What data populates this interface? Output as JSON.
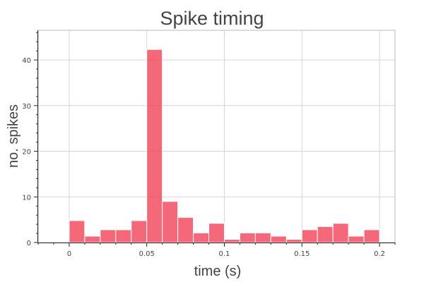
{
  "chart_data": {
    "type": "bar",
    "title": "Spike timing",
    "xlabel": "time (s)",
    "ylabel": "no. spikes",
    "xlim": [
      -0.02,
      0.21
    ],
    "ylim": [
      0,
      46.5
    ],
    "grid": true,
    "legend": "none",
    "bar_color": "#f23d55",
    "x_ticks": [
      {
        "value": 0,
        "label": "0"
      },
      {
        "value": 0.05,
        "label": "0.05"
      },
      {
        "value": 0.1,
        "label": "0.1"
      },
      {
        "value": 0.15,
        "label": "0.15"
      },
      {
        "value": 0.2,
        "label": "0.2"
      }
    ],
    "y_ticks": [
      {
        "value": 0,
        "label": "0"
      },
      {
        "value": 10,
        "label": "10"
      },
      {
        "value": 20,
        "label": "20"
      },
      {
        "value": 30,
        "label": "30"
      },
      {
        "value": 40,
        "label": "40"
      }
    ],
    "bin_width": 0.01,
    "bin_starts": [
      0.0,
      0.01,
      0.02,
      0.03,
      0.04,
      0.05,
      0.06,
      0.07,
      0.08,
      0.09,
      0.1,
      0.11,
      0.12,
      0.13,
      0.14,
      0.15,
      0.16,
      0.17,
      0.18,
      0.19
    ],
    "values": [
      4.8,
      1.4,
      2.8,
      2.8,
      4.8,
      42.3,
      9.0,
      5.5,
      2.1,
      4.2,
      0.7,
      2.1,
      2.1,
      1.4,
      0.7,
      2.8,
      3.5,
      4.2,
      1.4,
      2.8
    ]
  }
}
